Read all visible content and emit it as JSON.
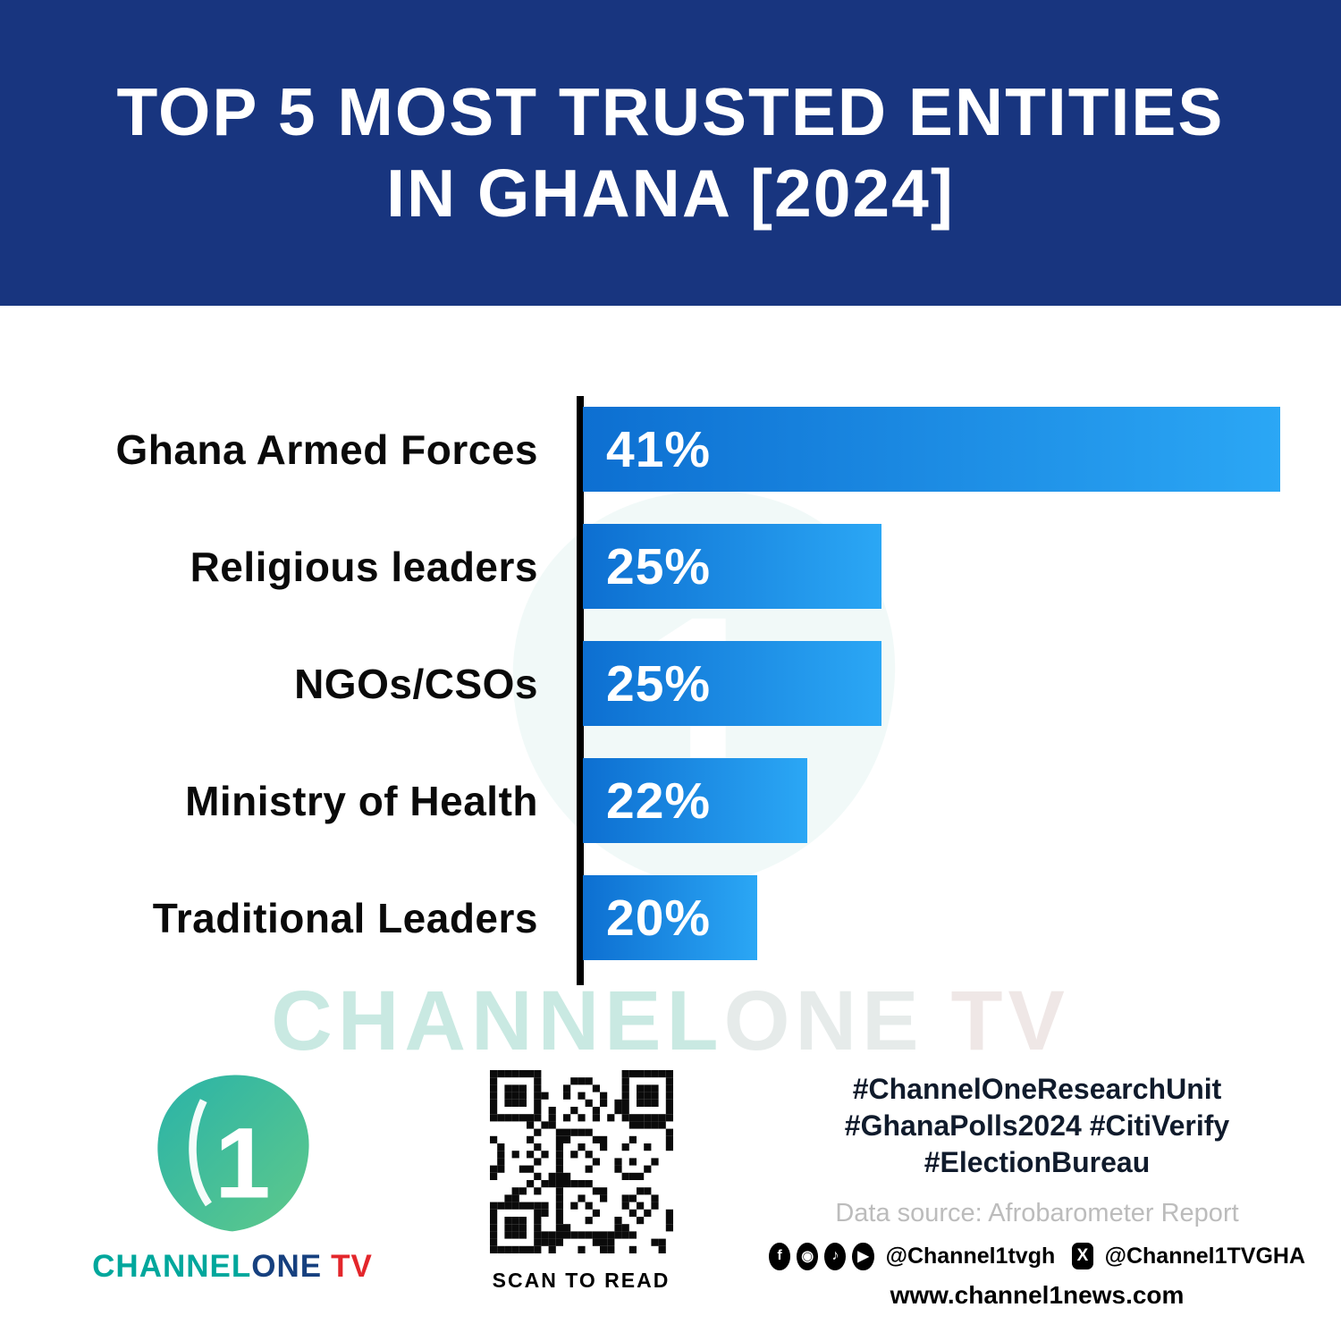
{
  "header": {
    "title_line1": "TOP 5 MOST TRUSTED ENTITIES",
    "title_line2": "IN GHANA [2024]"
  },
  "chart_data": {
    "type": "bar",
    "orientation": "horizontal",
    "title": "TOP 5 MOST TRUSTED ENTITIES IN GHANA [2024]",
    "categories": [
      "Ghana Armed Forces",
      "Religious leaders",
      "NGOs/CSOs",
      "Ministry of Health",
      "Traditional Leaders"
    ],
    "values": [
      41,
      25,
      25,
      22,
      20
    ],
    "value_labels": [
      "41%",
      "25%",
      "25%",
      "22%",
      "20%"
    ],
    "unit": "%",
    "xlabel": "",
    "ylabel": "",
    "xlim": [
      13,
      42
    ],
    "grid": false,
    "legend": false,
    "bar_color_start": "#0d6fd1",
    "bar_color_end": "#2ba7f5",
    "axis_color": "#000000",
    "label_color": "#0a0a0a",
    "value_label_color": "#ffffff",
    "source": "Afrobarometer Report"
  },
  "watermark": {
    "channel": "CHANNEL",
    "one": "ONE",
    "tv": "TV"
  },
  "footer": {
    "logo": {
      "numeral": "1",
      "channel": "CHANNEL",
      "one": "ONE",
      "tv": "TV"
    },
    "qr_caption": "SCAN TO READ",
    "hashtags": [
      "#ChannelOneResearchUnit",
      "#GhanaPolls2024 #CitiVerify",
      "#ElectionBureau"
    ],
    "data_source": "Data source: Afrobarometer Report",
    "social": {
      "handle1": "@Channel1tvgh",
      "handle2": "@Channel1TVGHA"
    },
    "website": "www.channel1news.com"
  },
  "colors": {
    "header_bg": "#18357f",
    "bar_gradient_start": "#0d6fd1",
    "bar_gradient_end": "#2ba7f5",
    "logo_teal": "#00a79c",
    "logo_navy": "#16407f",
    "logo_red": "#e3262b"
  }
}
